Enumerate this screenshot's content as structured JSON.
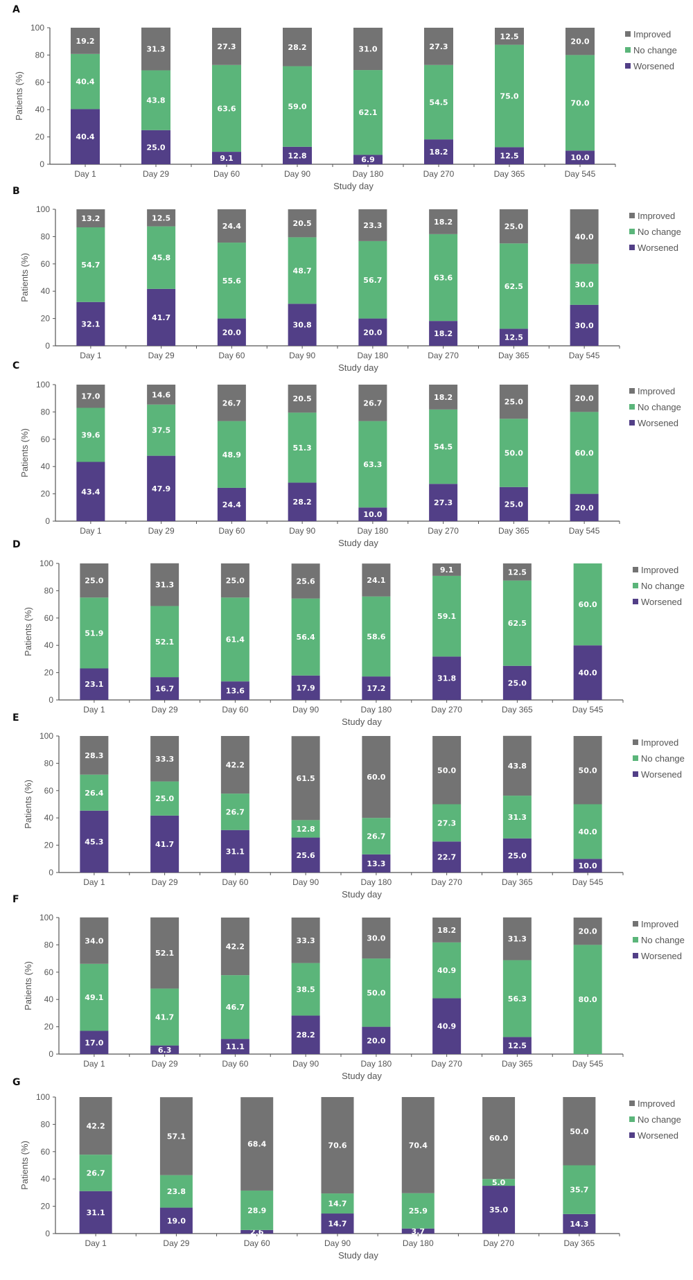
{
  "chart_data": {
    "type": "bar",
    "stacked": true,
    "series_order": [
      "Worsened",
      "No change",
      "Improved"
    ],
    "legend": [
      "Improved",
      "No change",
      "Worsened"
    ],
    "legend_position": "right",
    "colors": {
      "Improved": "#737373",
      "No change": "#5bb57a",
      "Worsened": "#523f87"
    },
    "axis_color": "#555555",
    "panels": [
      {
        "label": "A",
        "xlabel": "Study day",
        "ylabel": "Patients (%)",
        "ylim": [
          0,
          100
        ],
        "yticks": [
          0,
          20,
          40,
          60,
          80,
          100
        ],
        "categories": [
          "Day 1",
          "Day 29",
          "Day 60",
          "Day 90",
          "Day 180",
          "Day 270",
          "Day 365",
          "Day 545"
        ],
        "series": [
          {
            "name": "Worsened",
            "values": [
              40.4,
              25.0,
              9.1,
              12.8,
              6.9,
              18.2,
              12.5,
              10.0
            ]
          },
          {
            "name": "No change",
            "values": [
              40.4,
              43.8,
              63.6,
              59.0,
              62.1,
              54.5,
              75.0,
              70.0
            ]
          },
          {
            "name": "Improved",
            "values": [
              19.2,
              31.3,
              27.3,
              28.2,
              31.0,
              27.3,
              12.5,
              20.0
            ]
          }
        ]
      },
      {
        "label": "B",
        "xlabel": "Study day",
        "ylabel": "Patients (%)",
        "ylim": [
          0,
          100
        ],
        "yticks": [
          0,
          20,
          40,
          60,
          80,
          100
        ],
        "categories": [
          "Day 1",
          "Day 29",
          "Day 60",
          "Day 90",
          "Day 180",
          "Day 270",
          "Day 365",
          "Day 545"
        ],
        "series": [
          {
            "name": "Worsened",
            "values": [
              32.1,
              41.7,
              20.0,
              30.8,
              20.0,
              18.2,
              12.5,
              30.0
            ]
          },
          {
            "name": "No change",
            "values": [
              54.7,
              45.8,
              55.6,
              48.7,
              56.7,
              63.6,
              62.5,
              30.0
            ]
          },
          {
            "name": "Improved",
            "values": [
              13.2,
              12.5,
              24.4,
              20.5,
              23.3,
              18.2,
              25.0,
              40.0
            ]
          }
        ]
      },
      {
        "label": "C",
        "xlabel": "Study day",
        "ylabel": "Patients (%)",
        "ylim": [
          0,
          100
        ],
        "yticks": [
          0,
          20,
          40,
          60,
          80,
          100
        ],
        "categories": [
          "Day 1",
          "Day 29",
          "Day 60",
          "Day 90",
          "Day 180",
          "Day 270",
          "Day 365",
          "Day 545"
        ],
        "series": [
          {
            "name": "Worsened",
            "values": [
              43.4,
              47.9,
              24.4,
              28.2,
              10.0,
              27.3,
              25.0,
              20.0
            ]
          },
          {
            "name": "No change",
            "values": [
              39.6,
              37.5,
              48.9,
              51.3,
              63.3,
              54.5,
              50.0,
              60.0
            ]
          },
          {
            "name": "Improved",
            "values": [
              17.0,
              14.6,
              26.7,
              20.5,
              26.7,
              18.2,
              25.0,
              20.0
            ]
          }
        ]
      },
      {
        "label": "D",
        "xlabel": "Study day",
        "ylabel": "Patients (%)",
        "ylim": [
          0,
          100
        ],
        "yticks": [
          0,
          20,
          40,
          60,
          80,
          100
        ],
        "categories": [
          "Day 1",
          "Day 29",
          "Day 60",
          "Day 90",
          "Day 180",
          "Day 270",
          "Day 365",
          "Day 545"
        ],
        "series": [
          {
            "name": "Worsened",
            "values": [
              23.1,
              16.7,
              13.6,
              17.9,
              17.2,
              31.8,
              25.0,
              40.0
            ]
          },
          {
            "name": "No change",
            "values": [
              51.9,
              52.1,
              61.4,
              56.4,
              58.6,
              59.1,
              62.5,
              60.0
            ]
          },
          {
            "name": "Improved",
            "values": [
              25.0,
              31.3,
              25.0,
              25.6,
              24.1,
              9.1,
              12.5,
              0
            ]
          }
        ]
      },
      {
        "label": "E",
        "xlabel": "Study day",
        "ylabel": "Patients (%)",
        "ylim": [
          0,
          100
        ],
        "yticks": [
          0,
          20,
          40,
          60,
          80,
          100
        ],
        "categories": [
          "Day 1",
          "Day 29",
          "Day 60",
          "Day 90",
          "Day 180",
          "Day 270",
          "Day 365",
          "Day 545"
        ],
        "series": [
          {
            "name": "Worsened",
            "values": [
              45.3,
              41.7,
              31.1,
              25.6,
              13.3,
              22.7,
              25.0,
              10.0
            ]
          },
          {
            "name": "No change",
            "values": [
              26.4,
              25.0,
              26.7,
              12.8,
              26.7,
              27.3,
              31.3,
              40.0
            ]
          },
          {
            "name": "Improved",
            "values": [
              28.3,
              33.3,
              42.2,
              61.5,
              60.0,
              50.0,
              43.8,
              50.0
            ]
          }
        ]
      },
      {
        "label": "F",
        "xlabel": "Study day",
        "ylabel": "Patients (%)",
        "ylim": [
          0,
          100
        ],
        "yticks": [
          0,
          20,
          40,
          60,
          80,
          100
        ],
        "categories": [
          "Day 1",
          "Day 29",
          "Day 60",
          "Day 90",
          "Day 180",
          "Day 270",
          "Day 365",
          "Day 545"
        ],
        "series": [
          {
            "name": "Worsened",
            "values": [
              17.0,
              6.3,
              11.1,
              28.2,
              20.0,
              40.9,
              12.5,
              0
            ]
          },
          {
            "name": "No change",
            "values": [
              49.1,
              41.7,
              46.7,
              38.5,
              50.0,
              40.9,
              56.3,
              80.0
            ]
          },
          {
            "name": "Improved",
            "values": [
              34.0,
              52.1,
              42.2,
              33.3,
              30.0,
              18.2,
              31.3,
              20.0
            ]
          }
        ]
      },
      {
        "label": "G",
        "xlabel": "Study day",
        "ylabel": "Patients (%)",
        "ylim": [
          0,
          100
        ],
        "yticks": [
          0,
          20,
          40,
          60,
          80,
          100
        ],
        "categories": [
          "Day 1",
          "Day 29",
          "Day 60",
          "Day 90",
          "Day 180",
          "Day 270",
          "Day 365"
        ],
        "series": [
          {
            "name": "Worsened",
            "values": [
              31.1,
              19.0,
              2.6,
              14.7,
              3.7,
              35.0,
              14.3
            ]
          },
          {
            "name": "No change",
            "values": [
              26.7,
              23.8,
              28.9,
              14.7,
              25.9,
              5.0,
              35.7
            ]
          },
          {
            "name": "Improved",
            "values": [
              42.2,
              57.1,
              68.4,
              70.6,
              70.4,
              60.0,
              50.0
            ]
          }
        ]
      }
    ]
  }
}
